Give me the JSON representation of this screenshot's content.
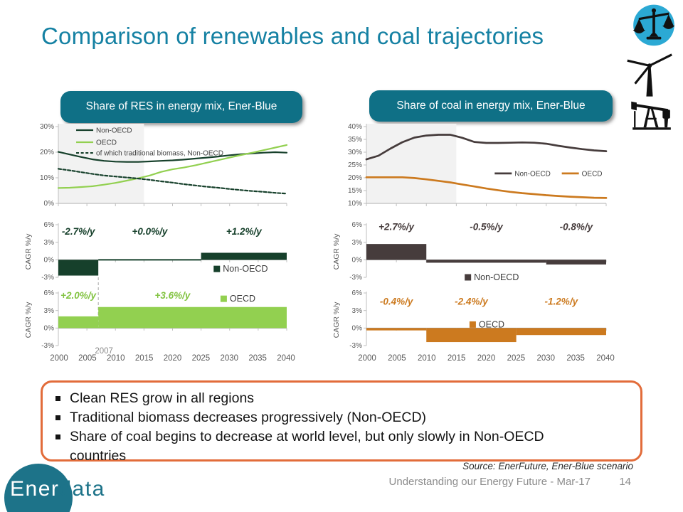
{
  "slide": {
    "title": "Comparison of renewables and coal trajectories",
    "cagr_axis_label": "CAGR %/y",
    "notes": [
      "Clean RES grow in all regions",
      "Traditional biomass decreases progressively (Non-OECD)",
      "Share of coal begins to decrease at world level, but only slowly in Non-OECD countries"
    ],
    "footer": {
      "source": "Source: EnerFuture, Ener-Blue scenario",
      "deck_title": "Understanding our Energy Future - Mar-17",
      "page_number": "14",
      "logo_text_primary": "Ener",
      "logo_text_secondary": "data"
    },
    "icons": [
      "balance-scale",
      "wind-turbine",
      "oil-pump"
    ],
    "colors": {
      "title_text": "#1581A3",
      "header_box": "#0F7086",
      "dark_green": "#16402b",
      "light_green": "#92d050",
      "dark_brown": "#463c3c",
      "orange": "#cc7a1f",
      "note_border": "#E26C3A",
      "axis": "#bfbfbf",
      "tick_text": "#595959",
      "muted_gray": "#8C8C8C",
      "logo_teal": "#1D7389",
      "icon_blue": "#2BA9D4",
      "shaded_region": "#f2f2f2"
    }
  },
  "x_axis_years": [
    "2000",
    "2005",
    "2010",
    "2015",
    "2020",
    "2025",
    "2030",
    "2035",
    "2040"
  ],
  "chart_data": [
    {
      "id": "res-share-line",
      "type": "line",
      "title": "Share of RES in energy mix, Ener-Blue",
      "xlim": [
        2000,
        2040
      ],
      "ylim": [
        0,
        30
      ],
      "yticks": [
        30,
        20,
        10,
        0
      ],
      "ytick_labels": [
        "30%",
        "20%",
        "10%",
        "0%"
      ],
      "shaded_region": [
        2000,
        2015
      ],
      "grid": false,
      "legend_position": "top-left",
      "x": [
        2000,
        2002,
        2004,
        2006,
        2008,
        2010,
        2012,
        2014,
        2016,
        2018,
        2020,
        2022,
        2024,
        2026,
        2028,
        2030,
        2032,
        2034,
        2036,
        2038,
        2040
      ],
      "series": [
        {
          "name": "Non-OECD",
          "color": "#16402b",
          "width": 2.2,
          "legend": {
            "fx": 0.078,
            "fy": 0.046
          },
          "y": [
            20.1,
            19.1,
            18.1,
            17.2,
            16.6,
            16.3,
            16.2,
            16.2,
            16.4,
            16.6,
            16.8,
            17.1,
            17.5,
            17.9,
            18.3,
            18.8,
            19.2,
            19.5,
            19.8,
            20.0,
            19.8
          ]
        },
        {
          "name": "OECD",
          "color": "#92d050",
          "width": 2.2,
          "legend": {
            "fx": 0.078,
            "fy": 0.204
          },
          "y": [
            6.0,
            6.1,
            6.4,
            6.7,
            7.3,
            8.0,
            8.9,
            9.8,
            10.9,
            12.3,
            13.3,
            14.0,
            14.9,
            15.9,
            16.9,
            17.9,
            18.9,
            19.8,
            20.8,
            21.8,
            22.8
          ]
        },
        {
          "name": "of which traditional biomass, Non-OECD",
          "color": "#16402b",
          "width": 2.2,
          "dash": "4 2.6",
          "legend": {
            "fx": 0.078,
            "fy": 0.343
          },
          "y": [
            13.5,
            12.9,
            12.2,
            11.5,
            10.9,
            10.5,
            10.1,
            9.7,
            9.2,
            8.6,
            8.1,
            7.5,
            7.0,
            6.5,
            6.1,
            5.6,
            5.2,
            4.8,
            4.5,
            4.1,
            3.8
          ]
        }
      ]
    },
    {
      "id": "res-cagr-nonoecd",
      "type": "bar",
      "ylabel": "CAGR %/y",
      "xlim": [
        2000,
        2040
      ],
      "ylim": [
        -3,
        6
      ],
      "yticks": [
        6,
        3,
        0,
        -3
      ],
      "ytick_labels": [
        "6%",
        "3%",
        "0%",
        "-3%"
      ],
      "color": "#16402b",
      "ann_fy": 0.19,
      "segments": [
        {
          "from": 2000,
          "to": 2007,
          "value": -2.7,
          "label": "-2.7%/y"
        },
        {
          "from": 2007,
          "to": 2025,
          "value": 0.0,
          "label": "+0.0%/y"
        },
        {
          "from": 2025,
          "to": 2040,
          "value": 1.2,
          "label": "+1.2%/y"
        }
      ],
      "legend": {
        "label": "Non-OECD",
        "fx": 0.68,
        "fy": 0.84
      },
      "marker_tail": {
        "year": 2007
      }
    },
    {
      "id": "res-cagr-oecd",
      "type": "bar",
      "ylabel": "CAGR %/y",
      "xlim": [
        2000,
        2040
      ],
      "ylim": [
        -3,
        6
      ],
      "yticks": [
        6,
        3,
        0,
        -3
      ],
      "ytick_labels": [
        "6%",
        "3%",
        "0%",
        "-3%"
      ],
      "color": "#92d050",
      "ann_color": "#82c341",
      "ann_fy": 0.11,
      "segments": [
        {
          "from": 2000,
          "to": 2007,
          "value": 2.0,
          "label": "+2.0%/y"
        },
        {
          "from": 2007,
          "to": 2040,
          "value": 3.6,
          "label": "+3.6%/y",
          "label_x": 2020
        }
      ],
      "legend": {
        "label": "OECD",
        "fx": 0.71,
        "fy": 0.11
      },
      "marker": {
        "year": 2007,
        "label": "2007"
      }
    },
    {
      "id": "coal-share-line",
      "type": "line",
      "title": "Share of coal in energy mix, Ener-Blue",
      "xlim": [
        2000,
        2040
      ],
      "ylim": [
        10,
        40
      ],
      "yticks": [
        40,
        35,
        30,
        25,
        20,
        15,
        10
      ],
      "ytick_labels": [
        "40%",
        "35%",
        "30%",
        "25%",
        "20%",
        "15%",
        "10%"
      ],
      "shaded_region": [
        2000,
        2015
      ],
      "grid": false,
      "legend_position": "mid-right",
      "x": [
        2000,
        2002,
        2004,
        2006,
        2008,
        2010,
        2012,
        2014,
        2016,
        2018,
        2020,
        2022,
        2024,
        2026,
        2028,
        2030,
        2032,
        2034,
        2036,
        2038,
        2040
      ],
      "series": [
        {
          "name": "Non-OECD",
          "color": "#463c3c",
          "width": 2.7,
          "legend": {
            "fx": 0.535,
            "fy": 0.61
          },
          "y": [
            27.2,
            28.6,
            31.4,
            33.9,
            35.7,
            36.5,
            36.8,
            36.8,
            35.6,
            34.0,
            33.6,
            33.6,
            33.7,
            33.8,
            33.7,
            33.3,
            32.5,
            31.8,
            31.2,
            30.7,
            30.4
          ]
        },
        {
          "name": "OECD",
          "color": "#cc7a1f",
          "width": 2.7,
          "legend": {
            "fx": 0.815,
            "fy": 0.61
          },
          "y": [
            20.2,
            20.2,
            20.2,
            20.2,
            19.9,
            19.4,
            18.8,
            18.2,
            17.4,
            16.6,
            15.8,
            15.1,
            14.5,
            14.0,
            13.6,
            13.2,
            12.9,
            12.6,
            12.4,
            12.2,
            12.1
          ]
        }
      ]
    },
    {
      "id": "coal-cagr-nonoecd",
      "type": "bar",
      "ylabel": "CAGR %/y",
      "xlim": [
        2000,
        2040
      ],
      "ylim": [
        -3,
        6
      ],
      "yticks": [
        6,
        3,
        0,
        -3
      ],
      "ytick_labels": [
        "6%",
        "3%",
        "0%",
        "-3%"
      ],
      "color": "#463c3c",
      "ann_fy": 0.1,
      "segments": [
        {
          "from": 2000,
          "to": 2010,
          "value": 2.7,
          "label": "+2.7%/y"
        },
        {
          "from": 2010,
          "to": 2030,
          "value": -0.5,
          "label": "-0.5%/y"
        },
        {
          "from": 2030,
          "to": 2040,
          "value": -0.8,
          "label": "-0.8%/y"
        }
      ],
      "legend": {
        "label": "Non-OECD",
        "fx": 0.41,
        "fy": 1.0
      }
    },
    {
      "id": "coal-cagr-oecd",
      "type": "bar",
      "ylabel": "CAGR %/y",
      "xlim": [
        2000,
        2040
      ],
      "ylim": [
        -3,
        6
      ],
      "yticks": [
        6,
        3,
        0,
        -3
      ],
      "ytick_labels": [
        "6%",
        "3%",
        "0%",
        "-3%"
      ],
      "color": "#cc7a1f",
      "ann_fy": 0.22,
      "segments": [
        {
          "from": 2000,
          "to": 2010,
          "value": -0.4,
          "label": "-0.4%/y"
        },
        {
          "from": 2010,
          "to": 2025,
          "value": -2.4,
          "label": "-2.4%/y"
        },
        {
          "from": 2025,
          "to": 2040,
          "value": -1.2,
          "label": "-1.2%/y"
        }
      ],
      "legend": {
        "label": "OECD",
        "fx": 0.43,
        "fy": 0.6
      }
    }
  ]
}
